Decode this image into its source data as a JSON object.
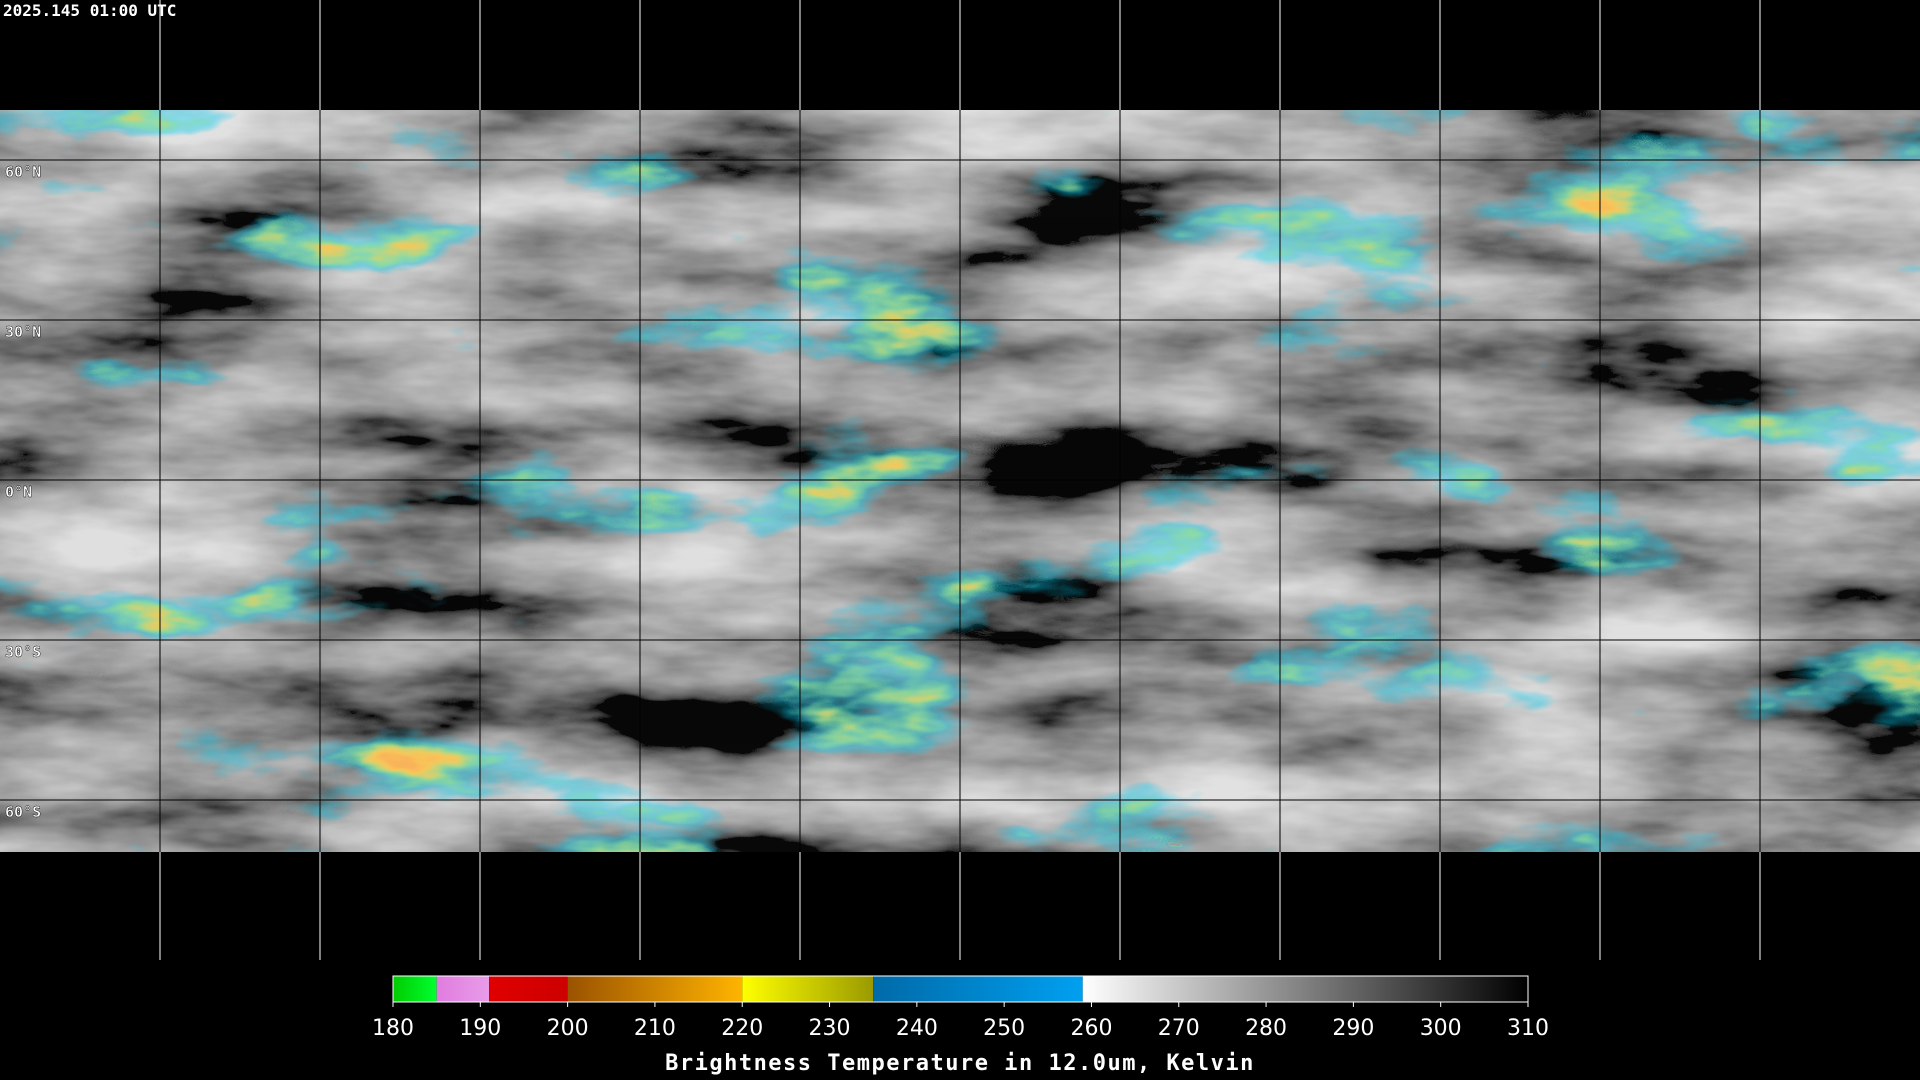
{
  "header": {
    "timestamp": "2025.145 01:00 UTC"
  },
  "map": {
    "latlim": [
      -90,
      90
    ],
    "lonlim": [
      -180,
      180
    ],
    "lat_grid": [
      {
        "value": 60,
        "label": "60°N"
      },
      {
        "value": 30,
        "label": "30°N"
      },
      {
        "value": 0,
        "label": "0°N"
      },
      {
        "value": -30,
        "label": "30°S"
      },
      {
        "value": -60,
        "label": "60°S"
      }
    ],
    "lon_grid": [
      -150,
      -120,
      -90,
      -60,
      -30,
      0,
      30,
      60,
      90,
      120,
      150
    ]
  },
  "colorbar": {
    "lim": [
      180,
      310
    ],
    "ticks": [
      180,
      190,
      200,
      210,
      220,
      230,
      240,
      250,
      260,
      270,
      280,
      290,
      300,
      310
    ],
    "label": "Brightness Temperature in 12.0um, Kelvin",
    "segments": [
      {
        "from": 180,
        "to": 185,
        "colors": [
          "#00cc00",
          "#00ff30"
        ]
      },
      {
        "from": 185,
        "to": 191,
        "colors": [
          "#e07ce0",
          "#e89ce8"
        ]
      },
      {
        "from": 191,
        "to": 200,
        "colors": [
          "#e00000",
          "#cc0000"
        ]
      },
      {
        "from": 200,
        "to": 220,
        "colors": [
          "#9a5200",
          "#ffb400"
        ]
      },
      {
        "from": 220,
        "to": 235,
        "colors": [
          "#ffff00",
          "#9a9a00"
        ]
      },
      {
        "from": 235,
        "to": 259,
        "colors": [
          "#006aa8",
          "#00a0f0"
        ]
      },
      {
        "from": 259,
        "to": 310,
        "colors": [
          "#ffffff",
          "#000000"
        ]
      }
    ]
  }
}
